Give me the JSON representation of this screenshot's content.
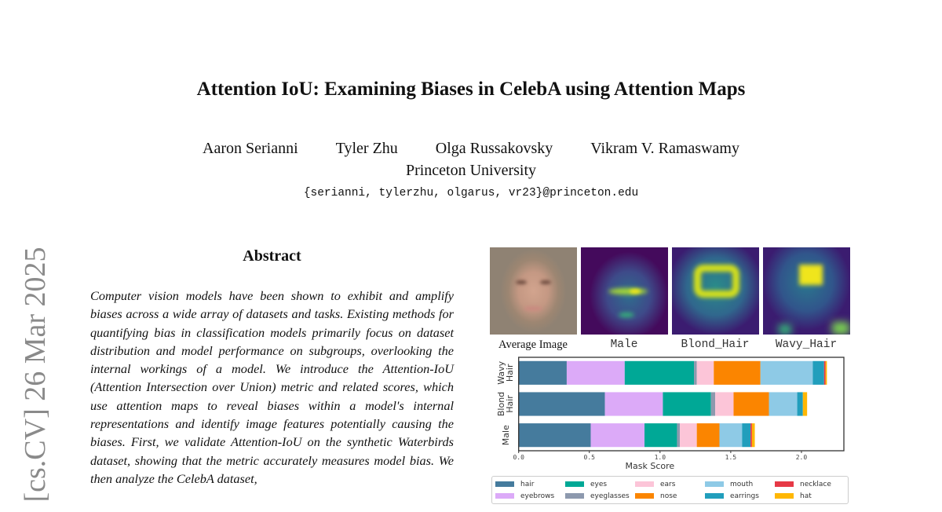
{
  "paper": {
    "title": "Attention IoU: Examining Biases in CelebA using Attention Maps",
    "authors": [
      "Aaron Serianni",
      "Tyler Zhu",
      "Olga Russakovsky",
      "Vikram V. Ramaswamy"
    ],
    "affiliation": "Princeton University",
    "email": "{serianni, tylerzhu, olgarus, vr23}@princeton.edu",
    "arxiv_stamp": "[cs.CV]  26 Mar 2025",
    "abstract_heading": "Abstract",
    "abstract": "Computer vision models have been shown to exhibit and amplify biases across a wide array of datasets and tasks. Existing methods for quantifying bias in classification models primarily focus on dataset distribution and model performance on subgroups, overlooking the internal workings of a model. We introduce the Attention-IoU (Attention Intersection over Union) metric and related scores, which use attention maps to reveal biases within a model's internal representations and identify image features potentially causing the biases. First, we validate Attention-IoU on the synthetic Waterbirds dataset, showing that the metric accurately measures model bias. We then analyze the CelebA dataset,"
  },
  "figure": {
    "captions": [
      "Average Image",
      "Male",
      "Blond_Hair",
      "Wavy_Hair"
    ]
  },
  "chart_data": {
    "type": "bar",
    "orientation": "horizontal-stacked",
    "categories": [
      "Wavy Hair",
      "Blond Hair",
      "Male"
    ],
    "xlabel": "Mask Score",
    "ylabel": "",
    "xlim": [
      0,
      2.3
    ],
    "xticks": [
      "0.0",
      "0.5",
      "1.0",
      "1.5",
      "2.0"
    ],
    "legend_position": "bottom",
    "series": [
      {
        "name": "hair",
        "color": "#457b9d",
        "values": [
          0.34,
          0.61,
          0.51
        ]
      },
      {
        "name": "eyebrows",
        "color": "#dcaaf8",
        "values": [
          0.41,
          0.41,
          0.38
        ]
      },
      {
        "name": "eyes",
        "color": "#00a896",
        "values": [
          0.49,
          0.34,
          0.23
        ]
      },
      {
        "name": "eyeglasses",
        "color": "#8d99ae",
        "values": [
          0.02,
          0.03,
          0.02
        ]
      },
      {
        "name": "ears",
        "color": "#fcc5d8",
        "values": [
          0.12,
          0.13,
          0.12
        ]
      },
      {
        "name": "nose",
        "color": "#fb8500",
        "values": [
          0.33,
          0.25,
          0.16
        ]
      },
      {
        "name": "mouth",
        "color": "#8ecae6",
        "values": [
          0.37,
          0.2,
          0.16
        ]
      },
      {
        "name": "earrings",
        "color": "#219ebc",
        "values": [
          0.08,
          0.04,
          0.06
        ]
      },
      {
        "name": "necklace",
        "color": "#e63946",
        "values": [
          0.01,
          0.0,
          0.01
        ]
      },
      {
        "name": "hat",
        "color": "#ffb703",
        "values": [
          0.01,
          0.03,
          0.02
        ]
      }
    ]
  }
}
